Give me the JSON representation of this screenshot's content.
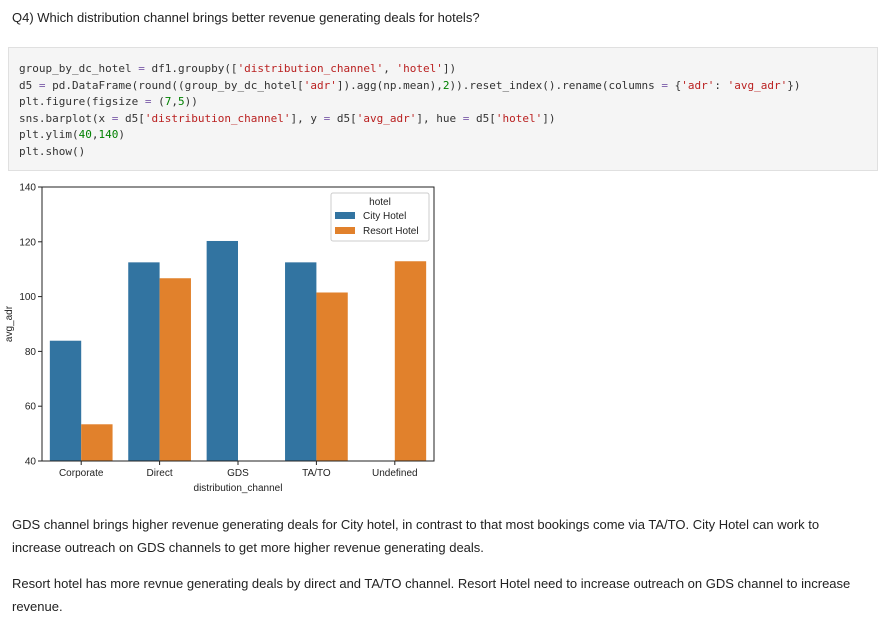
{
  "question": "Q4) Which distribution channel brings better revenue generating deals for hotels?",
  "code_lines": [
    [
      [
        "group_by_dc_hotel ",
        ""
      ],
      [
        "=",
        "o"
      ],
      [
        " df1.groupby([",
        ""
      ],
      [
        "'distribution_channel'",
        "s"
      ],
      [
        ", ",
        ""
      ],
      [
        "'hotel'",
        "s"
      ],
      [
        "])",
        ""
      ]
    ],
    [
      [
        "d5 ",
        ""
      ],
      [
        "=",
        "o"
      ],
      [
        " pd.DataFrame(round((group_by_dc_hotel[",
        ""
      ],
      [
        "'adr'",
        "s"
      ],
      [
        "]).agg(np.mean),",
        ""
      ],
      [
        "2",
        "n"
      ],
      [
        ")).reset_index().rename(columns ",
        ""
      ],
      [
        "=",
        "o"
      ],
      [
        " {",
        ""
      ],
      [
        "'adr'",
        "s"
      ],
      [
        ": ",
        ""
      ],
      [
        "'avg_adr'",
        "s"
      ],
      [
        "})",
        ""
      ]
    ],
    [
      [
        "plt.figure(figsize ",
        ""
      ],
      [
        "=",
        "o"
      ],
      [
        " (",
        ""
      ],
      [
        "7",
        "n"
      ],
      [
        ",",
        ""
      ],
      [
        "5",
        "n"
      ],
      [
        "))",
        ""
      ]
    ],
    [
      [
        "sns.barplot(x ",
        ""
      ],
      [
        "=",
        "o"
      ],
      [
        " d5[",
        ""
      ],
      [
        "'distribution_channel'",
        "s"
      ],
      [
        "], y ",
        ""
      ],
      [
        "=",
        "o"
      ],
      [
        " d5[",
        ""
      ],
      [
        "'avg_adr'",
        "s"
      ],
      [
        "], hue ",
        ""
      ],
      [
        "=",
        "o"
      ],
      [
        " d5[",
        ""
      ],
      [
        "'hotel'",
        "s"
      ],
      [
        "])",
        ""
      ]
    ],
    [
      [
        "plt.ylim(",
        ""
      ],
      [
        "40",
        "n"
      ],
      [
        ",",
        ""
      ],
      [
        "140",
        "n"
      ],
      [
        ")",
        ""
      ]
    ],
    [
      [
        "plt.show()",
        ""
      ]
    ]
  ],
  "chart_data": {
    "type": "bar",
    "categories": [
      "Corporate",
      "Direct",
      "GDS",
      "TA/TO",
      "Undefined"
    ],
    "series": [
      {
        "name": "City Hotel",
        "color": "#3274a1",
        "values": [
          83.9,
          112.5,
          120.3,
          112.5,
          null
        ]
      },
      {
        "name": "Resort Hotel",
        "color": "#e1812c",
        "values": [
          53.4,
          106.7,
          null,
          101.5,
          112.9
        ]
      }
    ],
    "xlabel": "distribution_channel",
    "ylabel": "avg_adr",
    "ylim": [
      40,
      140
    ],
    "yticks": [
      40,
      60,
      80,
      100,
      120,
      140
    ],
    "legend_title": "hotel",
    "legend_position": "top-right",
    "grid": false
  },
  "paragraphs": [
    "GDS channel brings higher revenue generating deals for City hotel, in contrast to that most bookings come via TA/TO. City Hotel can work to increase outreach on GDS channels to get more higher revenue generating deals.",
    "Resort hotel has more revnue generating deals by direct and TA/TO channel. Resort Hotel need to increase outreach on GDS channel to increase revenue."
  ]
}
